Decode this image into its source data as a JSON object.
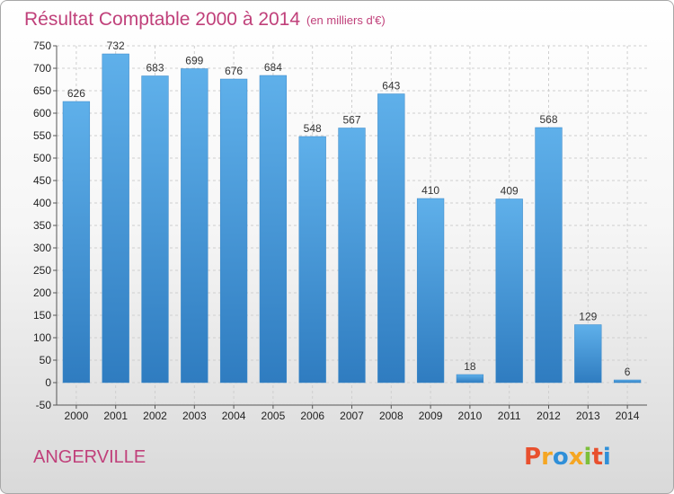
{
  "chart_data": {
    "type": "bar",
    "title": "Résultat Comptable 2000 à 2014",
    "subtitle": "(en milliers d'€)",
    "categories": [
      "2000",
      "2001",
      "2002",
      "2003",
      "2004",
      "2005",
      "2006",
      "2007",
      "2008",
      "2009",
      "2010",
      "2011",
      "2012",
      "2013",
      "2014"
    ],
    "values": [
      626,
      732,
      683,
      699,
      676,
      684,
      548,
      567,
      643,
      410,
      18,
      409,
      568,
      129,
      6
    ],
    "ylim": [
      -50,
      750
    ],
    "yticks": [
      -50,
      0,
      50,
      100,
      150,
      200,
      250,
      300,
      350,
      400,
      450,
      500,
      550,
      600,
      650,
      700,
      750
    ],
    "grid": true,
    "bar_color": "#4f9fdc",
    "title_color": "#c0407a"
  },
  "footer": {
    "commune": "ANGERVILLE",
    "brand": "Proxiti",
    "brand_colors": [
      "#e8502e",
      "#f5a623",
      "#2f8fd8",
      "#f5a623",
      "#7cbf3a",
      "#e8502e",
      "#2f8fd8"
    ]
  }
}
